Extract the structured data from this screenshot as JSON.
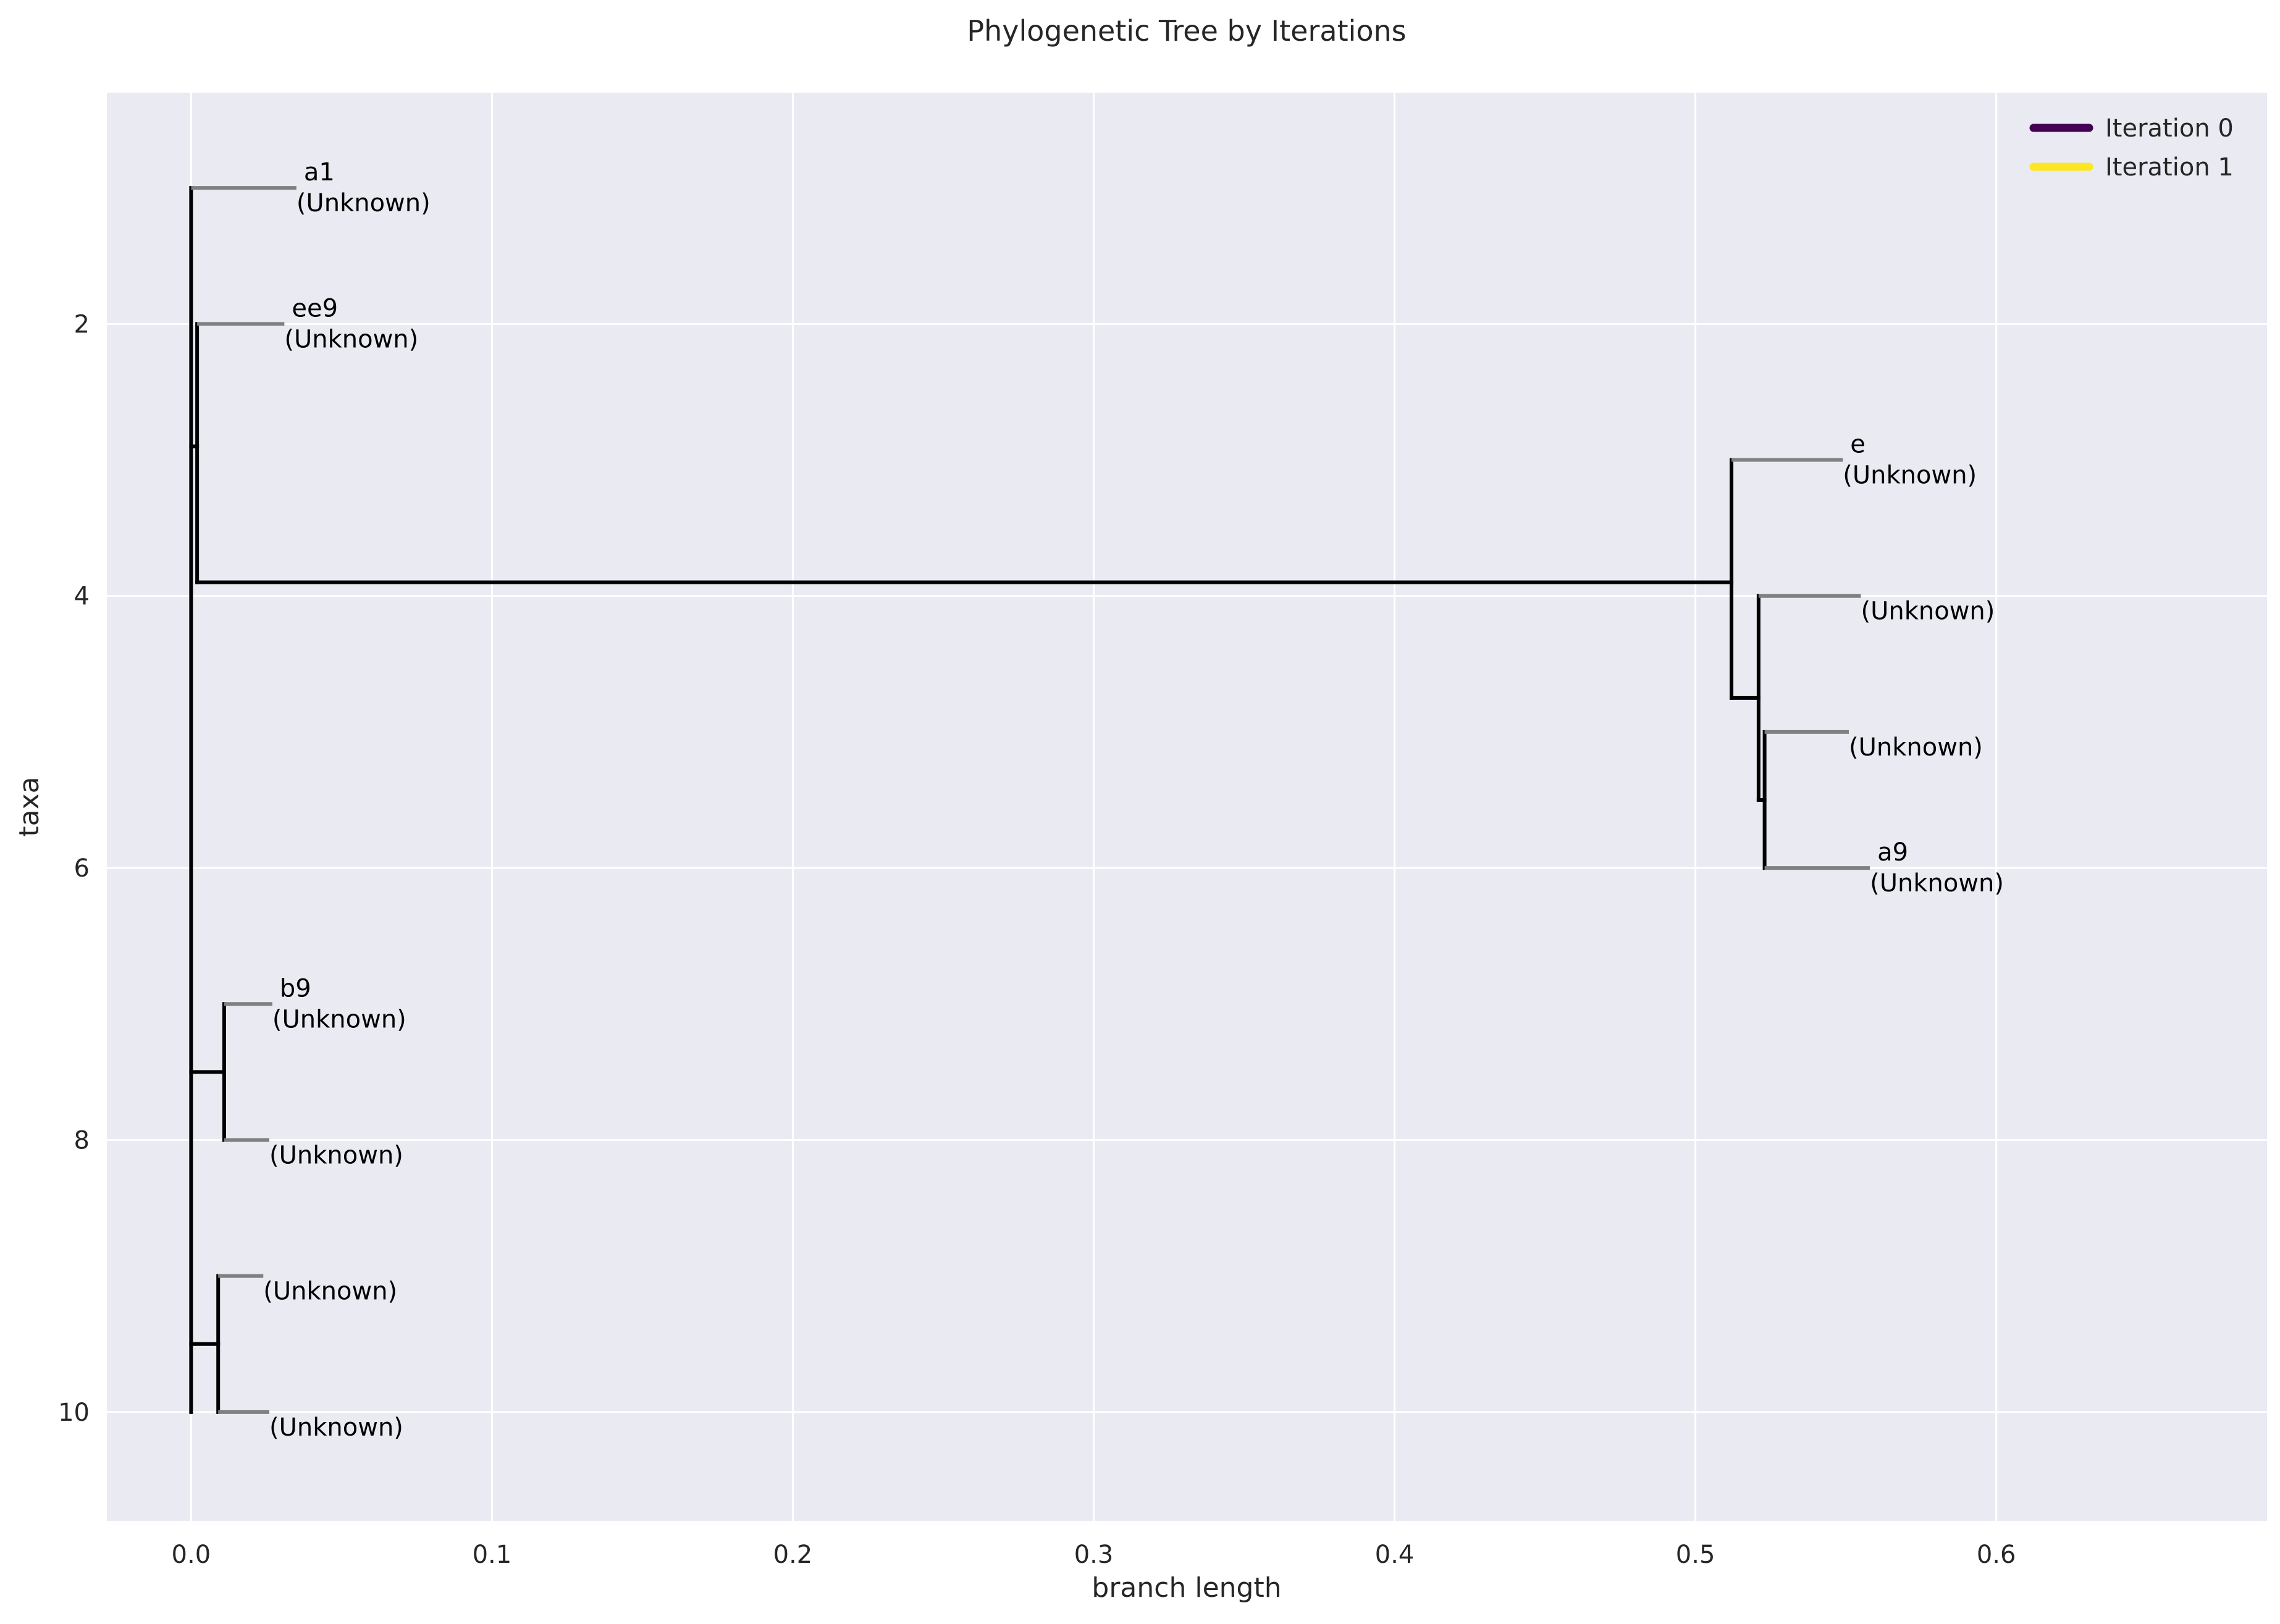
{
  "chart_data": {
    "type": "line",
    "title": "Phylogenetic Tree by Iterations",
    "xlabel": "branch length",
    "ylabel": "taxa",
    "xlim": [
      -0.028,
      0.69
    ],
    "ylim": [
      10.8,
      0.3
    ],
    "y_inverted": true,
    "grid": true,
    "legend_position": "top-right",
    "x_ticks": [
      0.0,
      0.1,
      0.2,
      0.3,
      0.4,
      0.5,
      0.6
    ],
    "x_tick_labels": [
      "0.0",
      "0.1",
      "0.2",
      "0.3",
      "0.4",
      "0.5",
      "0.6"
    ],
    "y_ticks": [
      2,
      4,
      6,
      8,
      10
    ],
    "y_tick_labels": [
      "2",
      "4",
      "6",
      "8",
      "10"
    ],
    "series": [
      {
        "name": "Iteration 0",
        "color": "#440154"
      },
      {
        "name": "Iteration 1",
        "color": "#fde725"
      }
    ],
    "branch_color": "#000000",
    "leaf_color": "#808080",
    "branches": [
      {
        "x0": 0.0,
        "y0": 1.0,
        "x1": 0.0,
        "y1": 10.0
      },
      {
        "x0": 0.0,
        "y0": 2.9,
        "x1": 0.002,
        "y1": 2.9
      },
      {
        "x0": 0.002,
        "y0": 2.0,
        "x1": 0.002,
        "y1": 3.9
      },
      {
        "x0": 0.002,
        "y0": 3.9,
        "x1": 0.512,
        "y1": 3.9
      },
      {
        "x0": 0.512,
        "y0": 3.0,
        "x1": 0.512,
        "y1": 4.75
      },
      {
        "x0": 0.512,
        "y0": 4.75,
        "x1": 0.521,
        "y1": 4.75
      },
      {
        "x0": 0.521,
        "y0": 4.0,
        "x1": 0.521,
        "y1": 5.5
      },
      {
        "x0": 0.521,
        "y0": 5.5,
        "x1": 0.523,
        "y1": 5.5
      },
      {
        "x0": 0.523,
        "y0": 5.0,
        "x1": 0.523,
        "y1": 6.0
      },
      {
        "x0": 0.0,
        "y0": 7.5,
        "x1": 0.011,
        "y1": 7.5
      },
      {
        "x0": 0.011,
        "y0": 7.0,
        "x1": 0.011,
        "y1": 8.0
      },
      {
        "x0": 0.0,
        "y0": 9.5,
        "x1": 0.009,
        "y1": 9.5
      },
      {
        "x0": 0.009,
        "y0": 9.0,
        "x1": 0.009,
        "y1": 10.0
      }
    ],
    "leaves": [
      {
        "name": "a1",
        "group": "(Unknown)",
        "y": 1,
        "x_start": 0.0,
        "x_end": 0.035
      },
      {
        "name": "ee9",
        "group": "(Unknown)",
        "y": 2,
        "x_start": 0.002,
        "x_end": 0.031
      },
      {
        "name": "e",
        "group": "(Unknown)",
        "y": 3,
        "x_start": 0.512,
        "x_end": 0.549
      },
      {
        "name": "",
        "group": "(Unknown)",
        "y": 4,
        "x_start": 0.521,
        "x_end": 0.555
      },
      {
        "name": "",
        "group": "(Unknown)",
        "y": 5,
        "x_start": 0.523,
        "x_end": 0.551
      },
      {
        "name": "a9",
        "group": "(Unknown)",
        "y": 6,
        "x_start": 0.523,
        "x_end": 0.558
      },
      {
        "name": "b9",
        "group": "(Unknown)",
        "y": 7,
        "x_start": 0.011,
        "x_end": 0.027
      },
      {
        "name": "",
        "group": "(Unknown)",
        "y": 8,
        "x_start": 0.011,
        "x_end": 0.026
      },
      {
        "name": "",
        "group": "(Unknown)",
        "y": 9,
        "x_start": 0.009,
        "x_end": 0.024
      },
      {
        "name": "",
        "group": "(Unknown)",
        "y": 10,
        "x_start": 0.009,
        "x_end": 0.026
      }
    ]
  }
}
